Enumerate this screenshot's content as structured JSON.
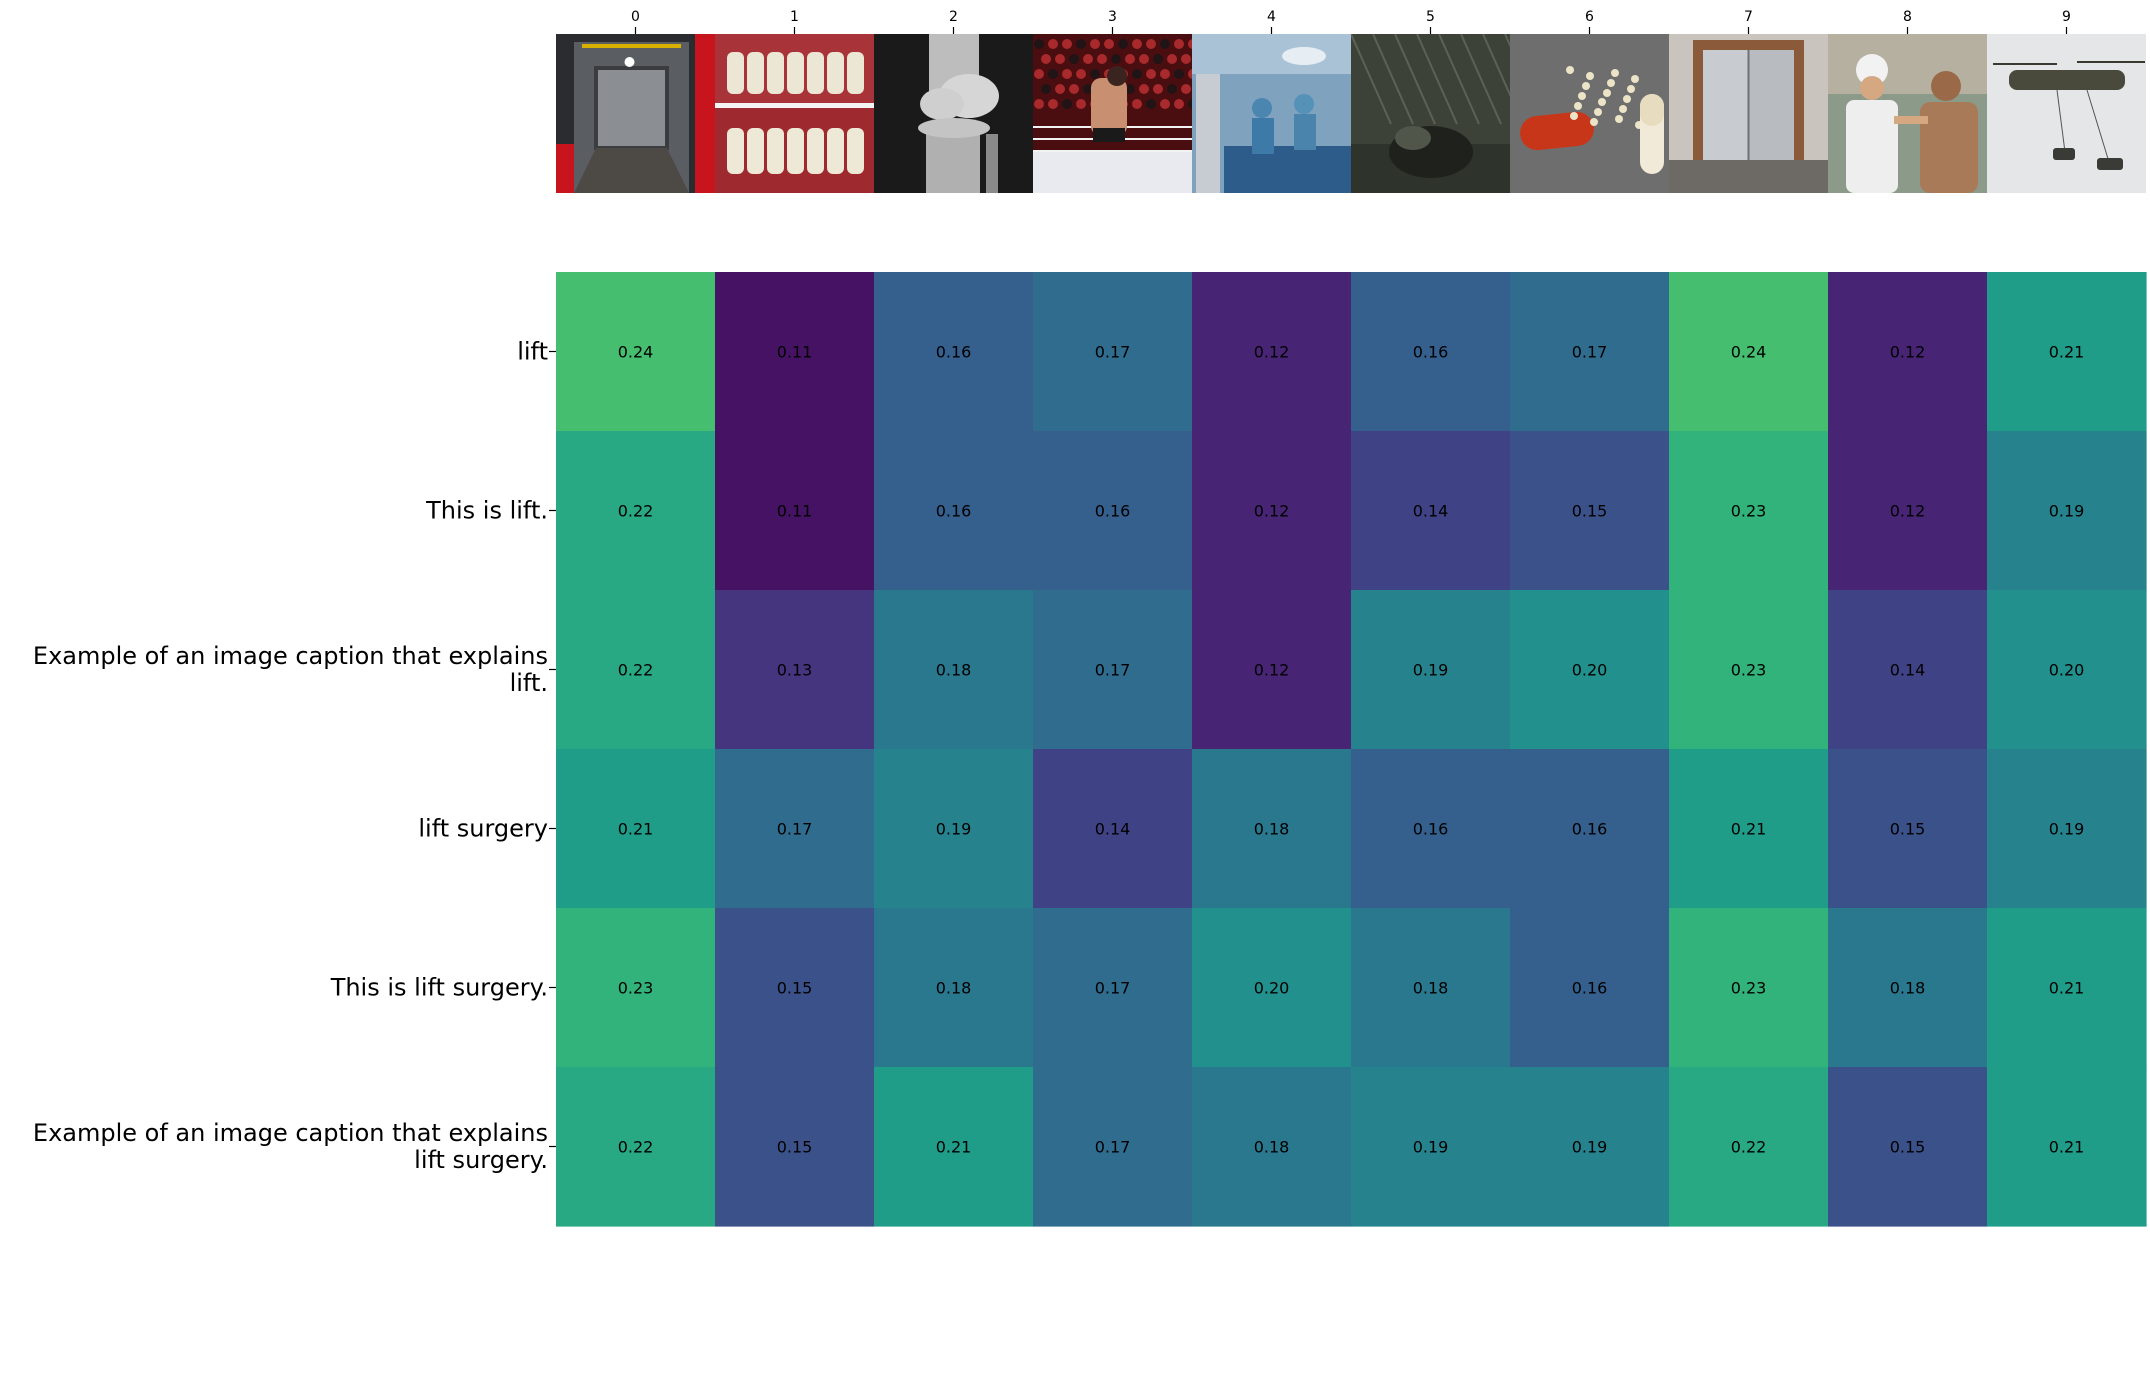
{
  "chart_data": {
    "type": "heatmap",
    "title": "",
    "xlabel": "",
    "ylabel": "",
    "x_tick_labels": [
      "0",
      "1",
      "2",
      "3",
      "4",
      "5",
      "6",
      "7",
      "8",
      "9"
    ],
    "image_thumbnails": [
      {
        "index": "0",
        "icon": "elevator-interior-photo"
      },
      {
        "index": "1",
        "icon": "teeth-closeup-photo"
      },
      {
        "index": "2",
        "icon": "knee-xray-photo"
      },
      {
        "index": "3",
        "icon": "wrestling-ring-photo"
      },
      {
        "index": "4",
        "icon": "operating-room-photo"
      },
      {
        "index": "5",
        "icon": "dark-creature-scene-photo"
      },
      {
        "index": "6",
        "icon": "spilled-capsule-pills-photo"
      },
      {
        "index": "7",
        "icon": "elevator-doors-photo"
      },
      {
        "index": "8",
        "icon": "doctor-examining-patient-photo"
      },
      {
        "index": "9",
        "icon": "helicopter-lifting-cars-photo"
      }
    ],
    "rows": [
      {
        "label_lines": [
          "lift"
        ],
        "values": [
          0.24,
          0.11,
          0.16,
          0.17,
          0.12,
          0.16,
          0.17,
          0.24,
          0.12,
          0.21
        ]
      },
      {
        "label_lines": [
          "This is lift."
        ],
        "values": [
          0.22,
          0.11,
          0.16,
          0.16,
          0.12,
          0.14,
          0.15,
          0.23,
          0.12,
          0.19
        ]
      },
      {
        "label_lines": [
          "Example of an image caption that explains",
          "lift."
        ],
        "values": [
          0.22,
          0.13,
          0.18,
          0.17,
          0.12,
          0.19,
          0.2,
          0.23,
          0.14,
          0.2
        ]
      },
      {
        "label_lines": [
          "lift surgery"
        ],
        "values": [
          0.21,
          0.17,
          0.19,
          0.14,
          0.18,
          0.16,
          0.16,
          0.21,
          0.15,
          0.19
        ]
      },
      {
        "label_lines": [
          "This is lift surgery."
        ],
        "values": [
          0.23,
          0.15,
          0.18,
          0.17,
          0.2,
          0.18,
          0.16,
          0.23,
          0.18,
          0.21
        ]
      },
      {
        "label_lines": [
          "Example of an image caption that explains",
          "lift surgery."
        ],
        "values": [
          0.22,
          0.15,
          0.21,
          0.17,
          0.18,
          0.19,
          0.19,
          0.22,
          0.15,
          0.21
        ]
      }
    ],
    "value_format_decimals": 2,
    "colormap": "viridis",
    "value_range": [
      0.1,
      0.3
    ],
    "colormap_stops": [
      "#440154",
      "#482878",
      "#3e4989",
      "#31688e",
      "#26828e",
      "#1f9e89",
      "#35b779",
      "#6ece58",
      "#b5de2b",
      "#fde725"
    ],
    "cell_text_color": "#000000",
    "grid": false,
    "legend": "none"
  }
}
